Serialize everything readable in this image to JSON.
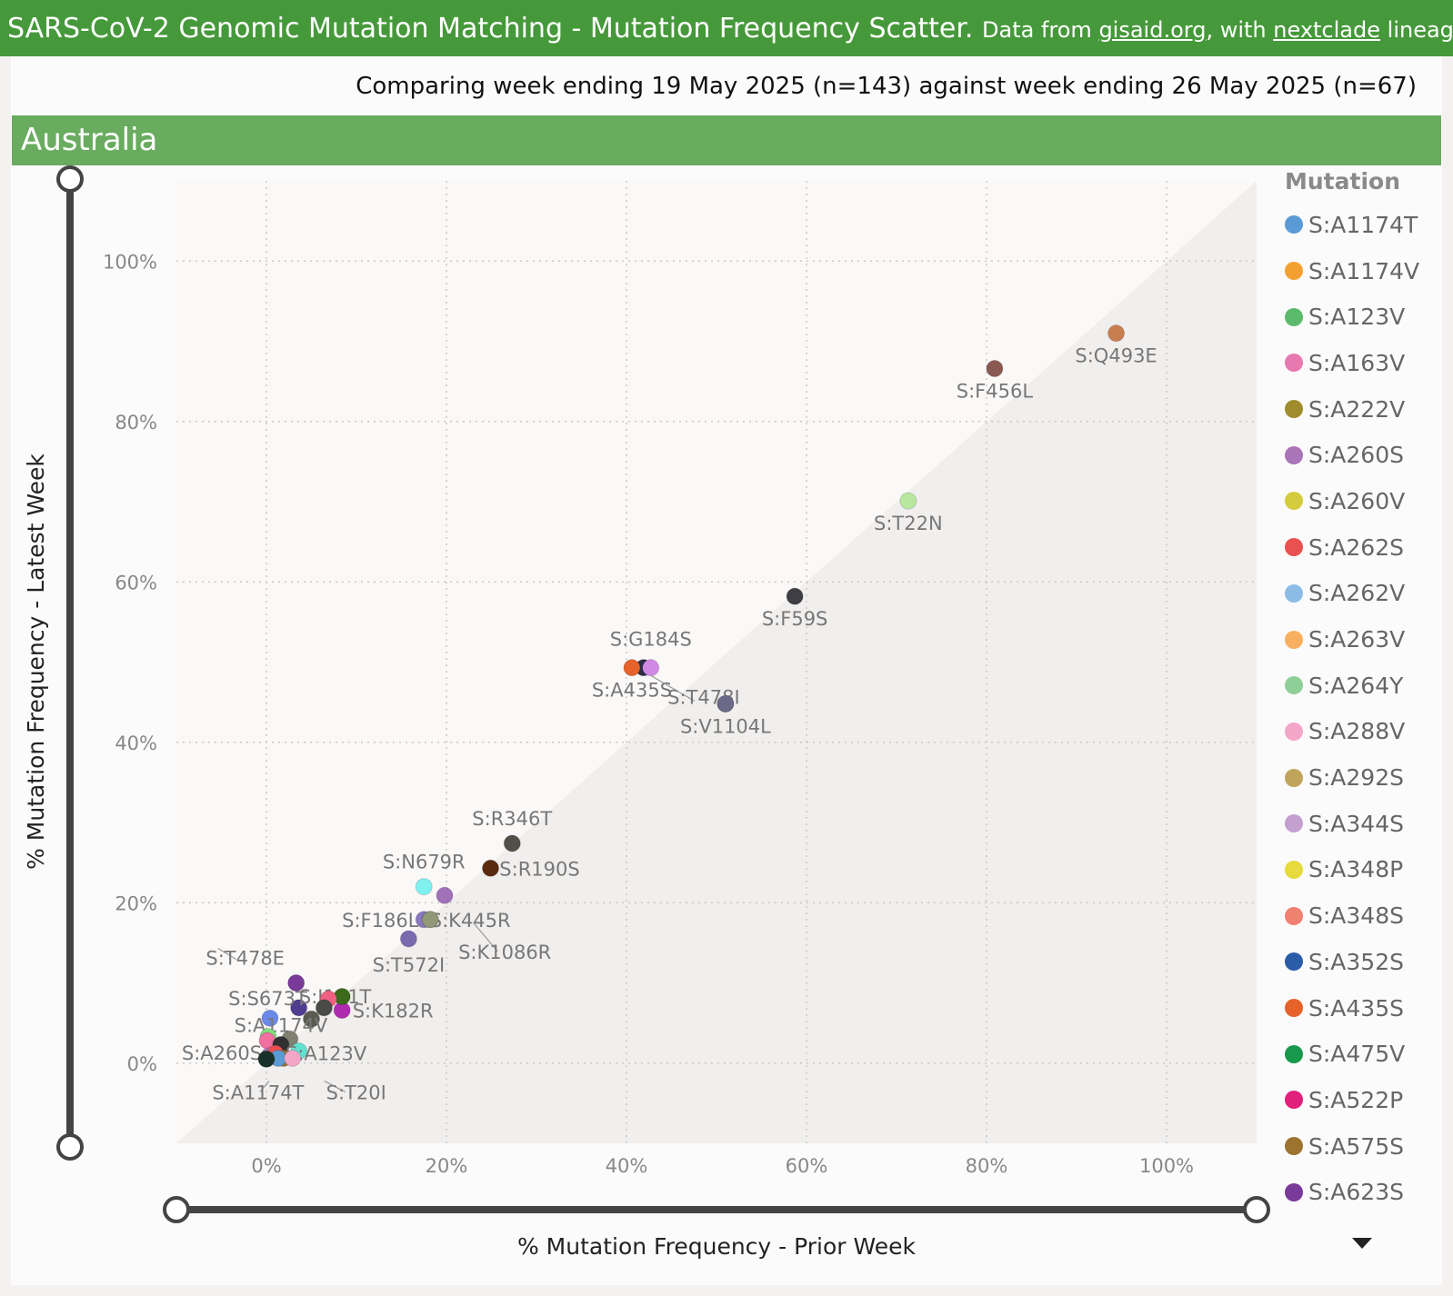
{
  "header": {
    "title": "SARS-CoV-2 Genomic Mutation Matching - Mutation Frequency Scatter.",
    "source_prefix": "Data from ",
    "source_link": "gisaid.org",
    "source_mid": ", with ",
    "lineage_link": "nextclade",
    "source_suffix": " lineages. So"
  },
  "subtitle": "Comparing week ending 19 May 2025 (n=143) against week ending 26 May 2025 (n=67)",
  "region": "Australia",
  "legend": {
    "title": "Mutation",
    "items": [
      {
        "label": "S:A1174T",
        "color": "#5b9bd5"
      },
      {
        "label": "S:A1174V",
        "color": "#f4a030"
      },
      {
        "label": "S:A123V",
        "color": "#5cba6c"
      },
      {
        "label": "S:A163V",
        "color": "#e879b0"
      },
      {
        "label": "S:A222V",
        "color": "#a08c2c"
      },
      {
        "label": "S:A260S",
        "color": "#a974b8"
      },
      {
        "label": "S:A260V",
        "color": "#d4cc3c"
      },
      {
        "label": "S:A262S",
        "color": "#ea5050"
      },
      {
        "label": "S:A262V",
        "color": "#8bbce8"
      },
      {
        "label": "S:A263V",
        "color": "#f8b060"
      },
      {
        "label": "S:A264Y",
        "color": "#8ecf98"
      },
      {
        "label": "S:A288V",
        "color": "#f4a6c8"
      },
      {
        "label": "S:A292S",
        "color": "#c0a45c"
      },
      {
        "label": "S:A344S",
        "color": "#c3a0d0"
      },
      {
        "label": "S:A348P",
        "color": "#e6da3c"
      },
      {
        "label": "S:A348S",
        "color": "#f08070"
      },
      {
        "label": "S:A352S",
        "color": "#2a5ca8"
      },
      {
        "label": "S:A435S",
        "color": "#e5622a"
      },
      {
        "label": "S:A475V",
        "color": "#17984a"
      },
      {
        "label": "S:A522P",
        "color": "#e0207a"
      },
      {
        "label": "S:A575S",
        "color": "#9c7430"
      },
      {
        "label": "S:A623S",
        "color": "#7a3a9a"
      }
    ]
  },
  "chart_data": {
    "type": "scatter",
    "xlabel": "% Mutation Frequency - Prior Week",
    "ylabel": "% Mutation Frequency - Latest Week",
    "xlim": [
      -10,
      110
    ],
    "ylim": [
      -10,
      110
    ],
    "xticks": [
      "0%",
      "20%",
      "40%",
      "60%",
      "80%",
      "100%"
    ],
    "yticks": [
      "0%",
      "20%",
      "40%",
      "60%",
      "80%",
      "100%"
    ],
    "points": [
      {
        "label": "S:Q493E",
        "x": 94.4,
        "y": 91.0,
        "color": "#c97e52"
      },
      {
        "label": "S:F456L",
        "x": 80.9,
        "y": 86.6,
        "color": "#8a5a52"
      },
      {
        "label": "S:T22N",
        "x": 71.3,
        "y": 70.1,
        "color": "#b8e8a0"
      },
      {
        "label": "S:F59S",
        "x": 58.7,
        "y": 58.2,
        "color": "#3e3e44"
      },
      {
        "label": "S:G184S",
        "x": 41.9,
        "y": 49.3,
        "color": "#2c2c46"
      },
      {
        "label": "S:A435S",
        "x": 40.6,
        "y": 49.3,
        "color": "#e5622a"
      },
      {
        "label": "",
        "x": 42.7,
        "y": 49.3,
        "color": "#d08ae6"
      },
      {
        "label": "S:T478I",
        "x": 51.0,
        "y": 44.8,
        "color": "#4a4a60"
      },
      {
        "label": "S:V1104L",
        "x": 51.0,
        "y": 44.8,
        "color": "#6a6a88"
      },
      {
        "label": "S:R346T",
        "x": 27.3,
        "y": 27.4,
        "color": "#505048"
      },
      {
        "label": "S:R190S",
        "x": 24.9,
        "y": 24.3,
        "color": "#5a2a10"
      },
      {
        "label": "S:N679R",
        "x": 17.5,
        "y": 22.0,
        "color": "#7ff0f0"
      },
      {
        "label": "",
        "x": 19.8,
        "y": 20.9,
        "color": "#a070b8"
      },
      {
        "label": "S:F186L",
        "x": 17.5,
        "y": 17.9,
        "color": "#8a78c0"
      },
      {
        "label": "S:K445R",
        "x": 18.2,
        "y": 17.9,
        "color": "#98a860"
      },
      {
        "label": "S:K1086R",
        "x": 18.2,
        "y": 17.9,
        "color": "#909878"
      },
      {
        "label": "S:T572I",
        "x": 15.8,
        "y": 15.5,
        "color": "#7a6ab0"
      },
      {
        "label": "S:T478E",
        "x": 3.3,
        "y": 10.0,
        "color": "#7a3a9a"
      },
      {
        "label": "S:I101T",
        "x": 3.6,
        "y": 6.9,
        "color": "#503c90"
      },
      {
        "label": "S:S673T",
        "x": 5.0,
        "y": 5.5,
        "color": "#5a5a50"
      },
      {
        "label": "S:K182R",
        "x": 8.4,
        "y": 6.6,
        "color": "#b02ab0"
      },
      {
        "label": "",
        "x": 8.4,
        "y": 8.3,
        "color": "#3a6a1a"
      },
      {
        "label": "",
        "x": 6.9,
        "y": 8.0,
        "color": "#f06080"
      },
      {
        "label": "",
        "x": 6.4,
        "y": 6.9,
        "color": "#4a4a48"
      },
      {
        "label": "S:A1174V",
        "x": 0.4,
        "y": 5.6,
        "color": "#6a8aea"
      },
      {
        "label": "",
        "x": 0.2,
        "y": 3.3,
        "color": "#80e080"
      },
      {
        "label": "",
        "x": 2.6,
        "y": 3.0,
        "color": "#808070"
      },
      {
        "label": "",
        "x": 0.1,
        "y": 2.8,
        "color": "#f070a0"
      },
      {
        "label": "",
        "x": 1.6,
        "y": 2.3,
        "color": "#303030"
      },
      {
        "label": "S:A260S",
        "x": 0.3,
        "y": 0.9,
        "color": "#a974b8"
      },
      {
        "label": "S:A123V",
        "x": 3.6,
        "y": 1.5,
        "color": "#60e0d0"
      },
      {
        "label": "",
        "x": 1.0,
        "y": 1.2,
        "color": "#ea5050"
      },
      {
        "label": "",
        "x": 1.9,
        "y": 0.6,
        "color": "#9c7430"
      },
      {
        "label": "S:A1174T",
        "x": 1.3,
        "y": 0.6,
        "color": "#5b9bd5"
      },
      {
        "label": "S:T20I",
        "x": 2.9,
        "y": 0.6,
        "color": "#f4a6c8"
      },
      {
        "label": "",
        "x": 0.0,
        "y": 0.5,
        "color": "#18302a"
      }
    ]
  }
}
